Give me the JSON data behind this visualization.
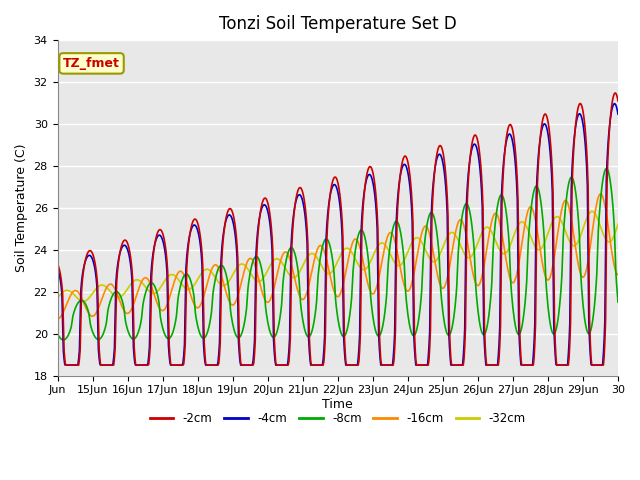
{
  "title": "Tonzi Soil Temperature Set D",
  "xlabel": "Time",
  "ylabel": "Soil Temperature (C)",
  "ylim": [
    18,
    34
  ],
  "xlim_days": [
    0,
    16
  ],
  "x_tick_labels": [
    "Jun",
    "15Jun",
    "16Jun",
    "17Jun",
    "18Jun",
    "19Jun",
    "20Jun",
    "21Jun",
    "22Jun",
    "23Jun",
    "24Jun",
    "25Jun",
    "26Jun",
    "27Jun",
    "28Jun",
    "29Jun",
    "30"
  ],
  "x_tick_positions": [
    0,
    1,
    2,
    3,
    4,
    5,
    6,
    7,
    8,
    9,
    10,
    11,
    12,
    13,
    14,
    15,
    16
  ],
  "legend_labels": [
    "-2cm",
    "-4cm",
    "-8cm",
    "-16cm",
    "-32cm"
  ],
  "legend_colors": [
    "#cc0000",
    "#0000cc",
    "#00aa00",
    "#ff8800",
    "#cccc00"
  ],
  "line_widths": [
    1.2,
    1.2,
    1.2,
    1.2,
    1.2
  ],
  "annotation_text": "TZ_fmet",
  "annotation_color": "#cc0000",
  "annotation_bg": "#ffffcc",
  "background_color": "#e8e8e8",
  "grid_color": "#ffffff",
  "title_fontsize": 12,
  "axis_label_fontsize": 9,
  "tick_label_fontsize": 8
}
